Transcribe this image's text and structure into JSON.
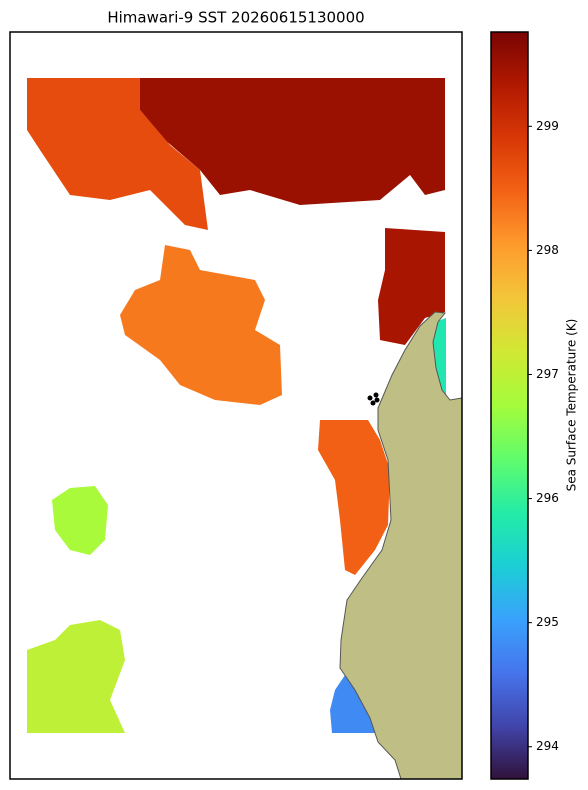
{
  "chart_data": {
    "type": "sst-map",
    "title": "Himawari-9 SST 20260615130000",
    "colorbar_label": "Sea Surface Temperature (K)",
    "clim": [
      293.74,
      299.76
    ],
    "cticks": [
      294,
      295,
      296,
      297,
      298,
      299
    ],
    "colormap": [
      "#30123b",
      "#4145ab",
      "#4675ed",
      "#39a2fc",
      "#1bcfd4",
      "#24eca6",
      "#61fc6c",
      "#a4fc3b",
      "#d1e834",
      "#f3c63a",
      "#fe9b2d",
      "#f36315",
      "#d93806",
      "#b11901",
      "#7a0402"
    ],
    "land_color": "#bfbf85",
    "values": [
      299.5,
      298.7,
      299.4,
      298.3,
      298.5,
      296.8,
      297.0,
      295.8,
      294.8
    ]
  }
}
